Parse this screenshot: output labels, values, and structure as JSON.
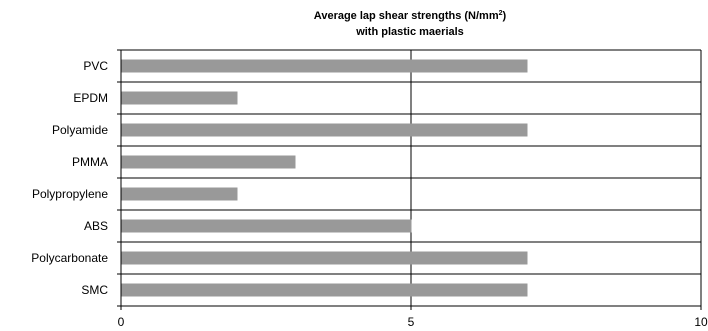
{
  "chart_data": {
    "type": "bar",
    "orientation": "horizontal",
    "title": {
      "line1_before_sup": "Average lap shear strengths (N/mm",
      "line1_sup": "2",
      "line1_after_sup": ")",
      "line2": "with plastic maerials"
    },
    "categories": [
      "PVC",
      "EPDM",
      "Polyamide",
      "PMMA",
      "Polypropylene",
      "ABS",
      "Polycarbonate",
      "SMC"
    ],
    "values": [
      7,
      2,
      7,
      3,
      2,
      5,
      7,
      7
    ],
    "xlim": [
      0,
      10
    ],
    "x_ticks": [
      0,
      5,
      10
    ],
    "x_tick_labels": [
      "0",
      "5",
      "10"
    ],
    "xlabel": "",
    "ylabel": "",
    "grid": "vertical and horizontal lines",
    "legend": "none",
    "colors": {
      "bar": "#999999",
      "grid": "#000000",
      "axis": "#000000"
    }
  }
}
